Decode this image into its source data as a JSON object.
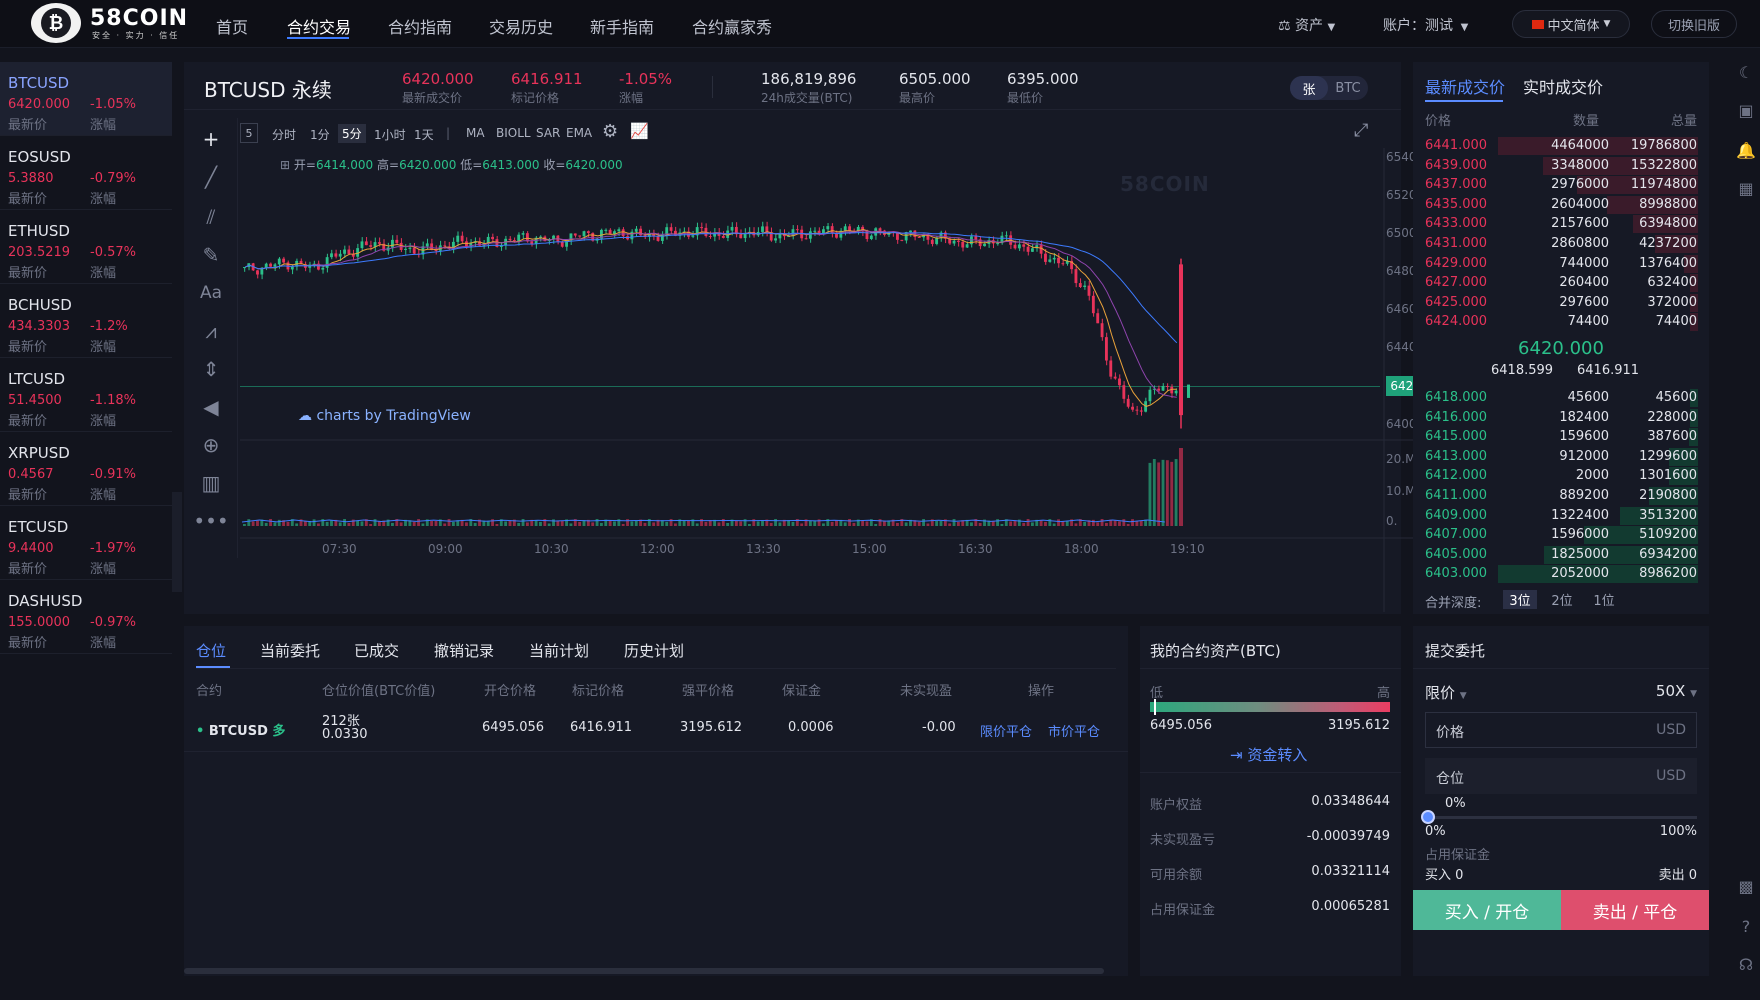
{
  "brand": {
    "name": "58COIN",
    "tagline": "安全 · 实力 · 信任",
    "logo_glyph": "₿"
  },
  "nav": {
    "items": [
      "首页",
      "合约交易",
      "合约指南",
      "交易历史",
      "新手指南",
      "合约赢家秀"
    ],
    "active": 1
  },
  "topright": {
    "assets": "资产",
    "account": "账户：测试",
    "lang": "中文简体",
    "old": "切换旧版"
  },
  "markets": [
    {
      "symbol": "BTCUSD",
      "price": "6420.000",
      "change": "-1.05%",
      "price_label": "最新价",
      "change_label": "涨幅"
    },
    {
      "symbol": "EOSUSD",
      "price": "5.3880",
      "change": "-0.79%",
      "price_label": "最新价",
      "change_label": "涨幅"
    },
    {
      "symbol": "ETHUSD",
      "price": "203.5219",
      "change": "-0.57%",
      "price_label": "最新价",
      "change_label": "涨幅"
    },
    {
      "symbol": "BCHUSD",
      "price": "434.3303",
      "change": "-1.2%",
      "price_label": "最新价",
      "change_label": "涨幅"
    },
    {
      "symbol": "LTCUSD",
      "price": "51.4500",
      "change": "-1.18%",
      "price_label": "最新价",
      "change_label": "涨幅"
    },
    {
      "symbol": "XRPUSD",
      "price": "0.4567",
      "change": "-0.91%",
      "price_label": "最新价",
      "change_label": "涨幅"
    },
    {
      "symbol": "ETCUSD",
      "price": "9.4400",
      "change": "-1.97%",
      "price_label": "最新价",
      "change_label": "涨幅"
    },
    {
      "symbol": "DASHUSD",
      "price": "155.0000",
      "change": "-0.97%",
      "price_label": "最新价",
      "change_label": "涨幅"
    }
  ],
  "ticker": {
    "title": "BTCUSD 永续",
    "last": "6420.000",
    "last_label": "最新成交价",
    "mark": "6416.911",
    "mark_label": "标记价格",
    "change": "-1.05%",
    "change_label": "涨幅",
    "volume": "186,819,896",
    "volume_label": "24h成交量(BTC)",
    "high": "6505.000",
    "high_label": "最高价",
    "low": "6395.000",
    "low_label": "最低价",
    "unit_on": "张",
    "unit_off": "BTC"
  },
  "chart_toolbar": {
    "box": "5",
    "intervals": [
      "分时",
      "1分",
      "5分",
      "1小时",
      "1天"
    ],
    "selected": "5分",
    "sep": "|",
    "indicators": [
      "MA",
      "BIOLL",
      "SAR",
      "EMA"
    ]
  },
  "chart_data": {
    "type": "candlestick",
    "ohlc_text": {
      "open_label": "开=",
      "open": "6414.000",
      "high_label": "高=",
      "high": "6420.000",
      "low_label": "低=",
      "low": "6413.000",
      "close_label": "收=",
      "close": "6420.000"
    },
    "watermark": "58COIN",
    "credit": "charts by TradingView",
    "yticks": [
      "6540.000",
      "6520.000",
      "6500.000",
      "6480.000",
      "6460.000",
      "6440.000",
      "6420.000",
      "6400.000"
    ],
    "ylim": [
      6393,
      6545
    ],
    "volume_ticks": [
      "20.M",
      "10.M",
      "0."
    ],
    "xticks": [
      "07:30",
      "09:00",
      "10:30",
      "12:00",
      "13:30",
      "15:00",
      "16:30",
      "18:00",
      "19:10"
    ],
    "current_price": "6420.000",
    "price_path": [
      6481,
      6483,
      6485,
      6482,
      6488,
      6492,
      6495,
      6493,
      6491,
      6494,
      6496,
      6495,
      6497,
      6498,
      6496,
      6499,
      6500,
      6501,
      6499,
      6500,
      6501,
      6500,
      6500,
      6501,
      6499,
      6500,
      6501,
      6502,
      6501,
      6500,
      6499,
      6498,
      6496,
      6495,
      6497,
      6494,
      6489,
      6484,
      6470,
      6430,
      6405,
      6418,
      6420
    ],
    "colors": {
      "up": "#2bc08a",
      "down": "#e8335a",
      "ma1": "#e8a13a",
      "ma2": "#8e44ad",
      "ma3": "#3d7bff"
    }
  },
  "orderbook": {
    "tabs": [
      "最新成交价",
      "实时成交价"
    ],
    "headers": [
      "价格",
      "数量",
      "总量"
    ],
    "asks": [
      {
        "p": "6441.000",
        "q": "4464000",
        "t": "19786800"
      },
      {
        "p": "6439.000",
        "q": "3348000",
        "t": "15322800"
      },
      {
        "p": "6437.000",
        "q": "2976000",
        "t": "11974800"
      },
      {
        "p": "6435.000",
        "q": "2604000",
        "t": "8998800"
      },
      {
        "p": "6433.000",
        "q": "2157600",
        "t": "6394800"
      },
      {
        "p": "6431.000",
        "q": "2860800",
        "t": "4237200"
      },
      {
        "p": "6429.000",
        "q": "744000",
        "t": "1376400"
      },
      {
        "p": "6427.000",
        "q": "260400",
        "t": "632400"
      },
      {
        "p": "6425.000",
        "q": "297600",
        "t": "372000"
      },
      {
        "p": "6424.000",
        "q": "74400",
        "t": "74400"
      }
    ],
    "mid": "6420.000",
    "mid_left": "6418.599",
    "mid_right": "6416.911",
    "bids": [
      {
        "p": "6418.000",
        "q": "45600",
        "t": "45600"
      },
      {
        "p": "6416.000",
        "q": "182400",
        "t": "228000"
      },
      {
        "p": "6415.000",
        "q": "159600",
        "t": "387600"
      },
      {
        "p": "6413.000",
        "q": "912000",
        "t": "1299600"
      },
      {
        "p": "6412.000",
        "q": "2000",
        "t": "1301600"
      },
      {
        "p": "6411.000",
        "q": "889200",
        "t": "2190800"
      },
      {
        "p": "6409.000",
        "q": "1322400",
        "t": "3513200"
      },
      {
        "p": "6407.000",
        "q": "1596000",
        "t": "5109200"
      },
      {
        "p": "6405.000",
        "q": "1825000",
        "t": "6934200"
      },
      {
        "p": "6403.000",
        "q": "2052000",
        "t": "8986200"
      }
    ],
    "depth_label": "合并深度:",
    "depth": [
      "3位",
      "2位",
      "1位"
    ]
  },
  "positions": {
    "tabs": [
      "仓位",
      "当前委托",
      "已成交",
      "撤销记录",
      "当前计划",
      "历史计划"
    ],
    "columns": [
      "合约",
      "仓位价值(BTC价值)",
      "开仓价格",
      "标记价格",
      "强平价格",
      "保证金",
      "未实现盈",
      "操作"
    ],
    "row": {
      "symbol": "BTCUSD",
      "side": "多",
      "qty": "212张",
      "value": "0.0330",
      "open": "6495.056",
      "mark": "6416.911",
      "liq": "3195.612",
      "margin": "0.0006",
      "pnl": "-0.00",
      "act1": "限价平仓",
      "act2": "市价平仓"
    }
  },
  "assets": {
    "title": "我的合约资产(BTC)",
    "low": "低",
    "high": "高",
    "low_val": "6495.056",
    "high_val": "3195.612",
    "transfer": "资金转入",
    "rows": [
      {
        "k": "账户权益",
        "v": "0.03348644"
      },
      {
        "k": "未实现盈亏",
        "v": "-0.00039749"
      },
      {
        "k": "可用余额",
        "v": "0.03321114"
      },
      {
        "k": "占用保证金",
        "v": "0.00065281"
      }
    ]
  },
  "order": {
    "title": "提交委托",
    "type": "限价",
    "leverage": "50X",
    "price_label": "价格",
    "price_unit": "USD",
    "qty_label": "仓位",
    "qty_unit": "USD",
    "slider_pct": "0%",
    "min": "0%",
    "max": "100%",
    "margin_label": "占用保证金",
    "buy_label": "买入 0",
    "sell_label": "卖出 0",
    "buy_btn": "买入 / 开仓",
    "sell_btn": "卖出 / 平仓"
  }
}
